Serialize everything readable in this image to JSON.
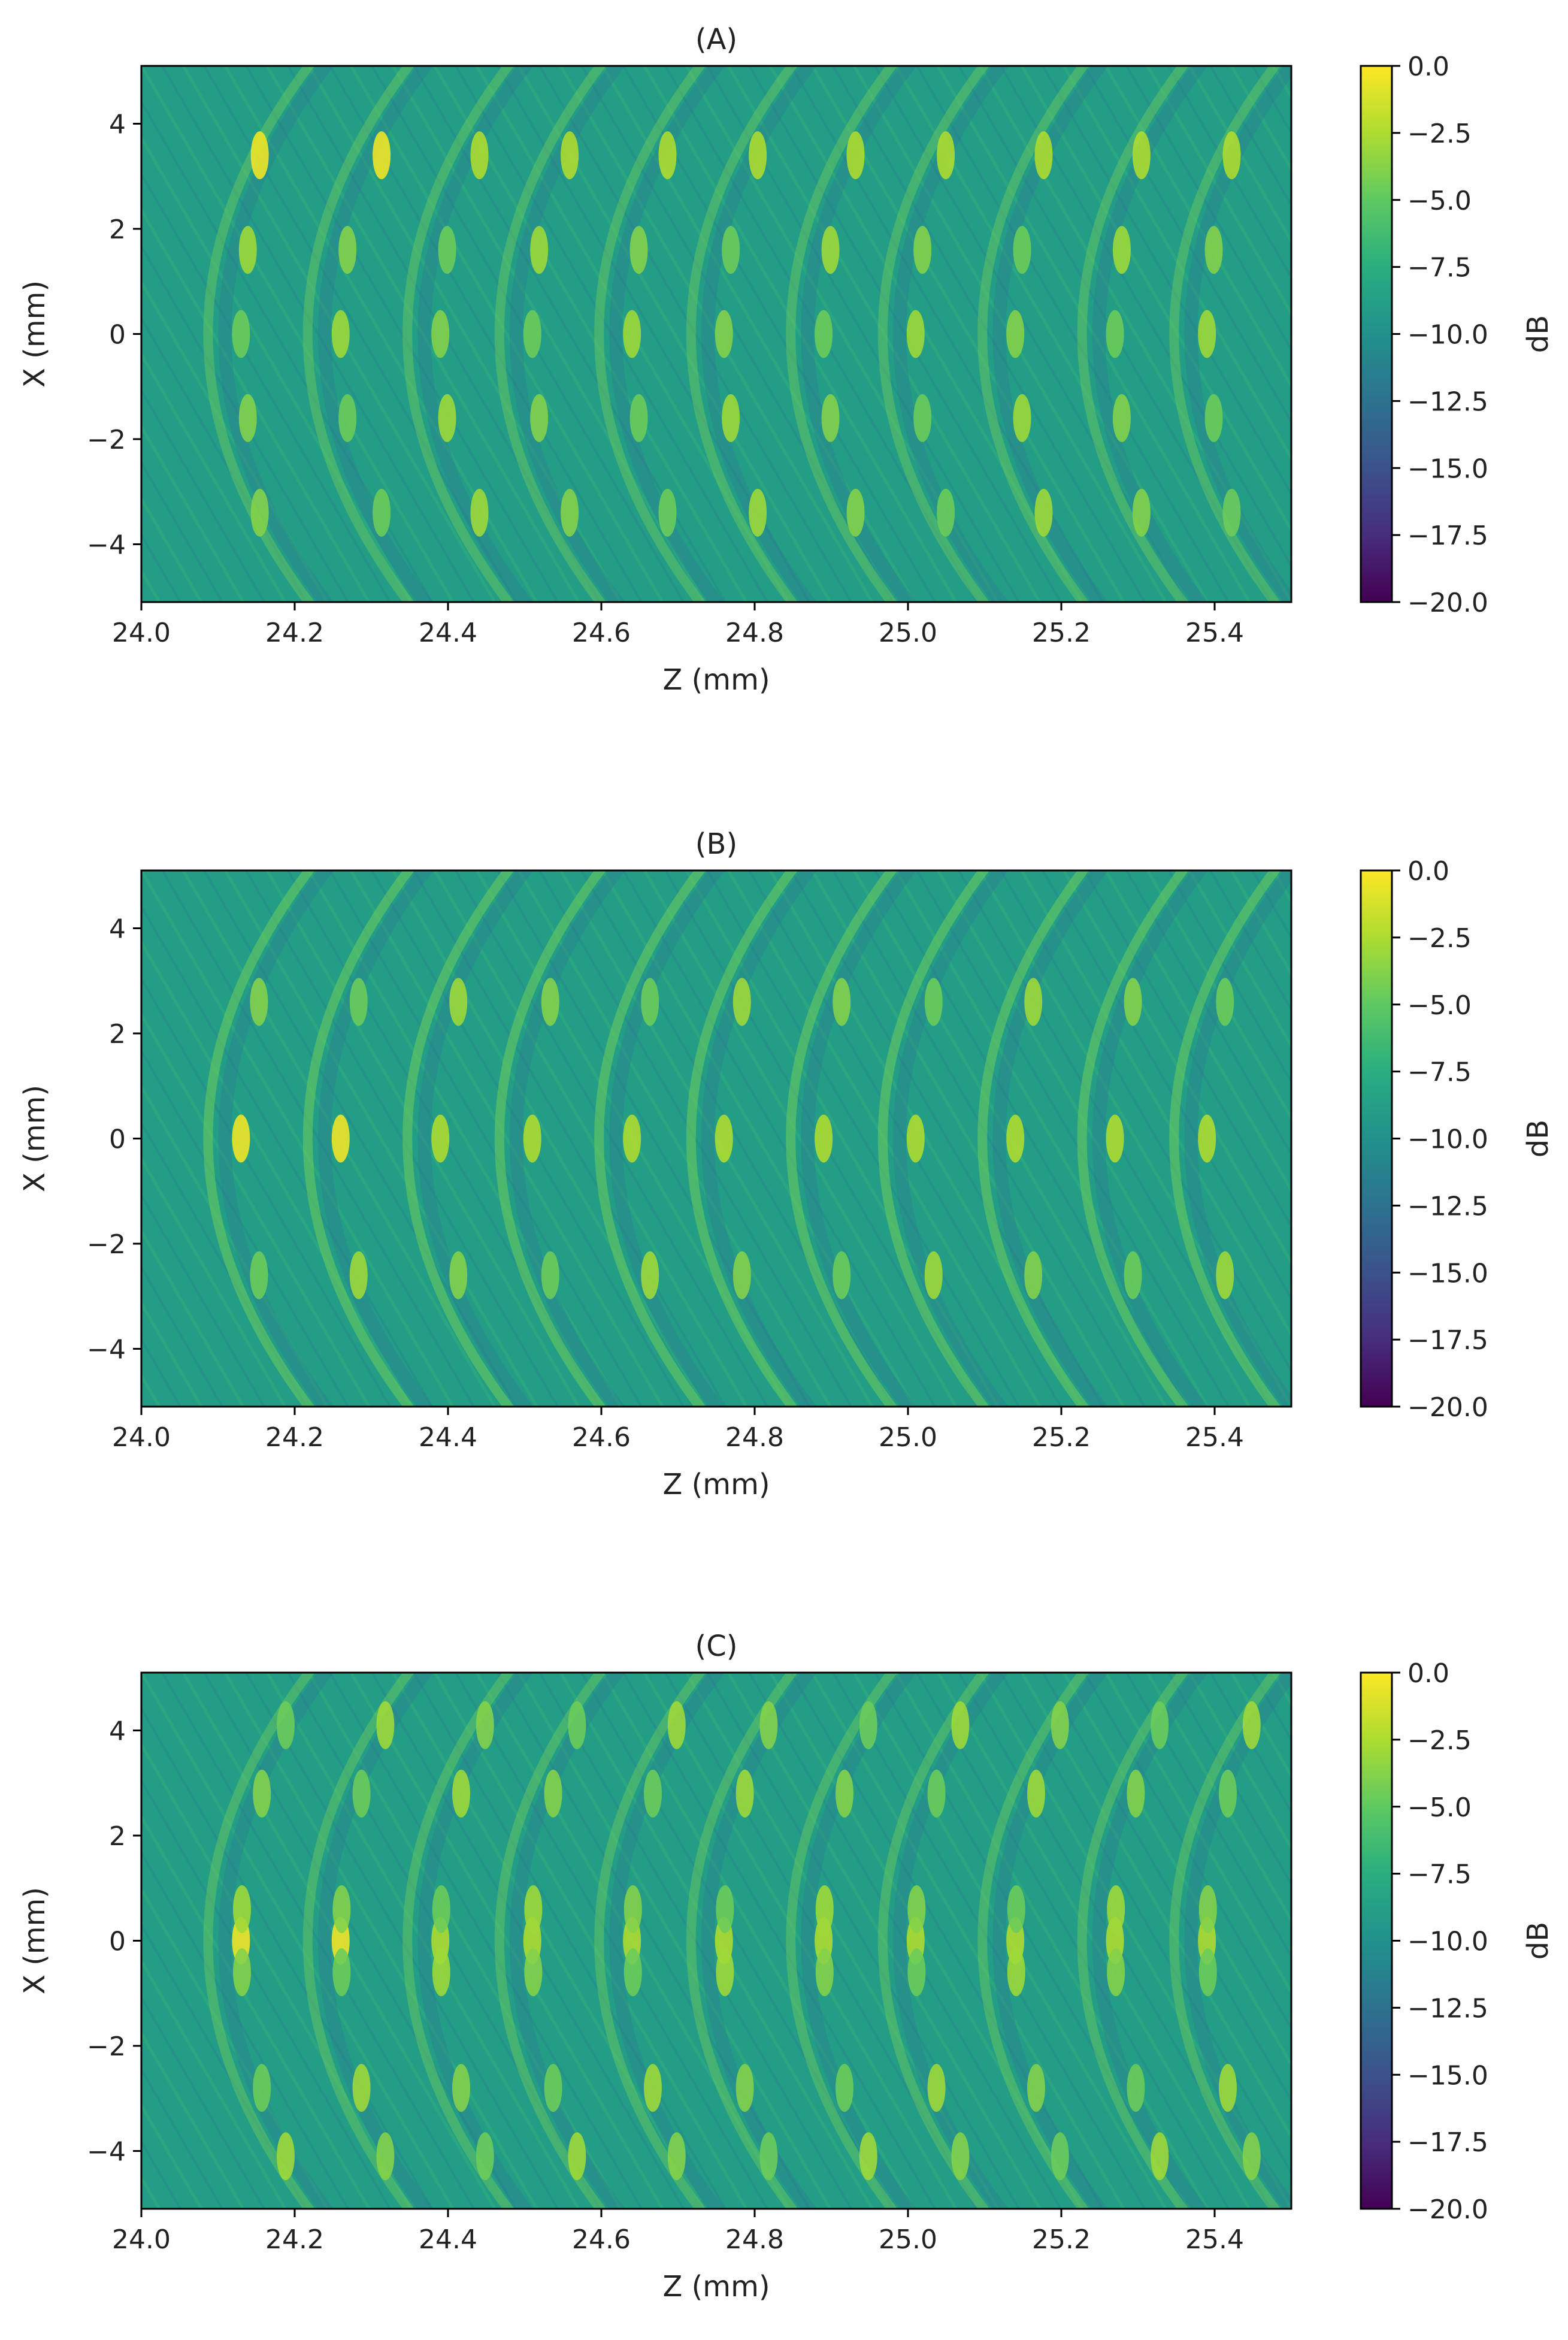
{
  "figure": {
    "colormap": "viridis",
    "colorbar_label": "dB",
    "colorbar_ticks": [
      "0.0",
      "−2.5",
      "−5.0",
      "−7.5",
      "−10.0",
      "−12.5",
      "−15.0",
      "−17.5",
      "−20.0"
    ]
  },
  "chart_data": [
    {
      "type": "heatmap",
      "title": "(A)",
      "xlabel": "Z (mm)",
      "ylabel": "X (mm)",
      "xlim": [
        24.0,
        25.5
      ],
      "ylim": [
        -5.1,
        5.1
      ],
      "xticks": [
        "24.0",
        "24.2",
        "24.4",
        "24.6",
        "24.8",
        "25.0",
        "25.2",
        "25.4"
      ],
      "yticks": [
        "4",
        "2",
        "0",
        "−2",
        "−4"
      ],
      "clim": [
        -20.0,
        0.0
      ],
      "colorbar_label": "dB",
      "reflectors_z_mm": [
        24.13,
        24.26,
        24.39,
        24.51,
        24.64,
        24.76,
        24.89,
        25.01,
        25.14,
        25.27,
        25.39
      ],
      "pattern": "crossed-diagonal"
    },
    {
      "type": "heatmap",
      "title": "(B)",
      "xlabel": "Z (mm)",
      "ylabel": "X (mm)",
      "xlim": [
        24.0,
        25.5
      ],
      "ylim": [
        -5.1,
        5.1
      ],
      "xticks": [
        "24.0",
        "24.2",
        "24.4",
        "24.6",
        "24.8",
        "25.0",
        "25.2",
        "25.4"
      ],
      "yticks": [
        "4",
        "2",
        "0",
        "−2",
        "−4"
      ],
      "clim": [
        -20.0,
        0.0
      ],
      "colorbar_label": "dB",
      "reflectors_z_mm": [
        24.13,
        24.26,
        24.39,
        24.51,
        24.64,
        24.76,
        24.89,
        25.01,
        25.14,
        25.27,
        25.39
      ],
      "pattern": "arc"
    },
    {
      "type": "heatmap",
      "title": "(C)",
      "xlabel": "Z (mm)",
      "ylabel": "X (mm)",
      "xlim": [
        24.0,
        25.5
      ],
      "ylim": [
        -5.1,
        5.1
      ],
      "xticks": [
        "24.0",
        "24.2",
        "24.4",
        "24.6",
        "24.8",
        "25.0",
        "25.2",
        "25.4"
      ],
      "yticks": [
        "4",
        "2",
        "0",
        "−2",
        "−4"
      ],
      "clim": [
        -20.0,
        0.0
      ],
      "colorbar_label": "dB",
      "reflectors_z_mm": [
        24.13,
        24.26,
        24.39,
        24.51,
        24.64,
        24.76,
        24.89,
        25.01,
        25.14,
        25.27,
        25.39
      ],
      "pattern": "compound"
    }
  ]
}
